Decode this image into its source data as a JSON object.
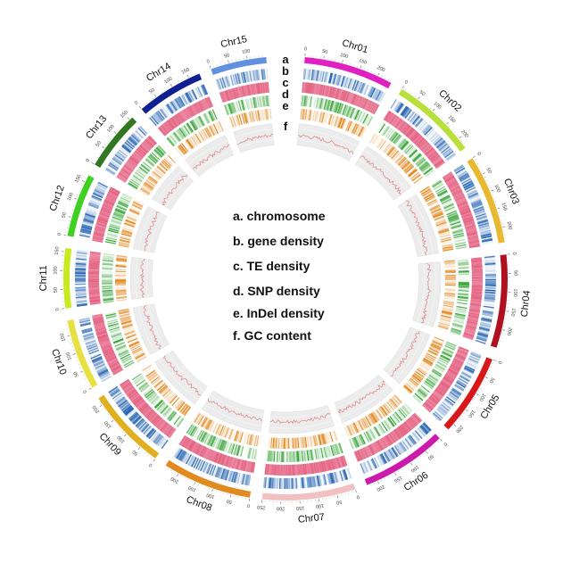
{
  "legend": [
    {
      "letter": "a",
      "text": "a. chromosome"
    },
    {
      "letter": "b",
      "text": "b. gene density"
    },
    {
      "letter": "c",
      "text": "c. TE density"
    },
    {
      "letter": "d",
      "text": "d. SNP density"
    },
    {
      "letter": "e",
      "text": "e. InDel density"
    },
    {
      "letter": "f",
      "text": "f. GC content"
    }
  ],
  "track_letters": [
    "a",
    "b",
    "c",
    "d",
    "e",
    "f"
  ],
  "chromosomes": [
    {
      "name": "Chr01",
      "length": 240,
      "color": "#e020c0",
      "ticks": [
        0,
        50,
        100,
        150,
        200
      ]
    },
    {
      "name": "Chr02",
      "length": 230,
      "color": "#b8e03a",
      "ticks": [
        0,
        50,
        100,
        150,
        200
      ]
    },
    {
      "name": "Chr03",
      "length": 240,
      "color": "#e8b830",
      "ticks": [
        0,
        50,
        100,
        150,
        200
      ]
    },
    {
      "name": "Chr04",
      "length": 250,
      "color": "#b01020",
      "ticks": [
        0,
        50,
        100,
        150,
        200
      ]
    },
    {
      "name": "Chr05",
      "length": 220,
      "color": "#d81818",
      "ticks": [
        0,
        50,
        100,
        150,
        200
      ]
    },
    {
      "name": "Chr06",
      "length": 230,
      "color": "#cc1aaa",
      "ticks": [
        0,
        50,
        100,
        150,
        200
      ]
    },
    {
      "name": "Chr07",
      "length": 250,
      "color": "#f2c0c0",
      "ticks": [
        0,
        50,
        100,
        150,
        200,
        250
      ]
    },
    {
      "name": "Chr08",
      "length": 240,
      "color": "#e08a20",
      "ticks": [
        0,
        50,
        100,
        150,
        200
      ]
    },
    {
      "name": "Chr09",
      "length": 220,
      "color": "#e0b020",
      "ticks": [
        0,
        50,
        100,
        150,
        200
      ]
    },
    {
      "name": "Chr10",
      "length": 190,
      "color": "#e8e040",
      "ticks": [
        0,
        50,
        100,
        150
      ]
    },
    {
      "name": "Chr11",
      "length": 160,
      "color": "#c8e820",
      "ticks": [
        0,
        50,
        100,
        150
      ]
    },
    {
      "name": "Chr12",
      "length": 170,
      "color": "#40d020",
      "ticks": [
        0,
        50,
        100,
        150
      ]
    },
    {
      "name": "Chr13",
      "length": 160,
      "color": "#307820",
      "ticks": [
        0,
        50,
        100,
        150
      ]
    },
    {
      "name": "Chr14",
      "length": 180,
      "color": "#102090",
      "ticks": [
        0,
        50,
        100,
        150
      ]
    },
    {
      "name": "Chr15",
      "length": 150,
      "color": "#6090e0",
      "ticks": [
        0,
        50,
        100
      ]
    }
  ],
  "tracks": [
    {
      "id": "b",
      "name": "gene density",
      "palette": [
        "#ffffff",
        "#2060b0"
      ]
    },
    {
      "id": "c",
      "name": "TE density",
      "palette": [
        "#f0a0b8",
        "#e05070"
      ]
    },
    {
      "id": "d",
      "name": "SNP density",
      "palette": [
        "#ffffff",
        "#30a030"
      ]
    },
    {
      "id": "e",
      "name": "InDel density",
      "palette": [
        "#ffffff",
        "#e08010"
      ]
    },
    {
      "id": "f",
      "name": "GC content",
      "palette": [
        "#ececec",
        "#d06060"
      ]
    }
  ]
}
